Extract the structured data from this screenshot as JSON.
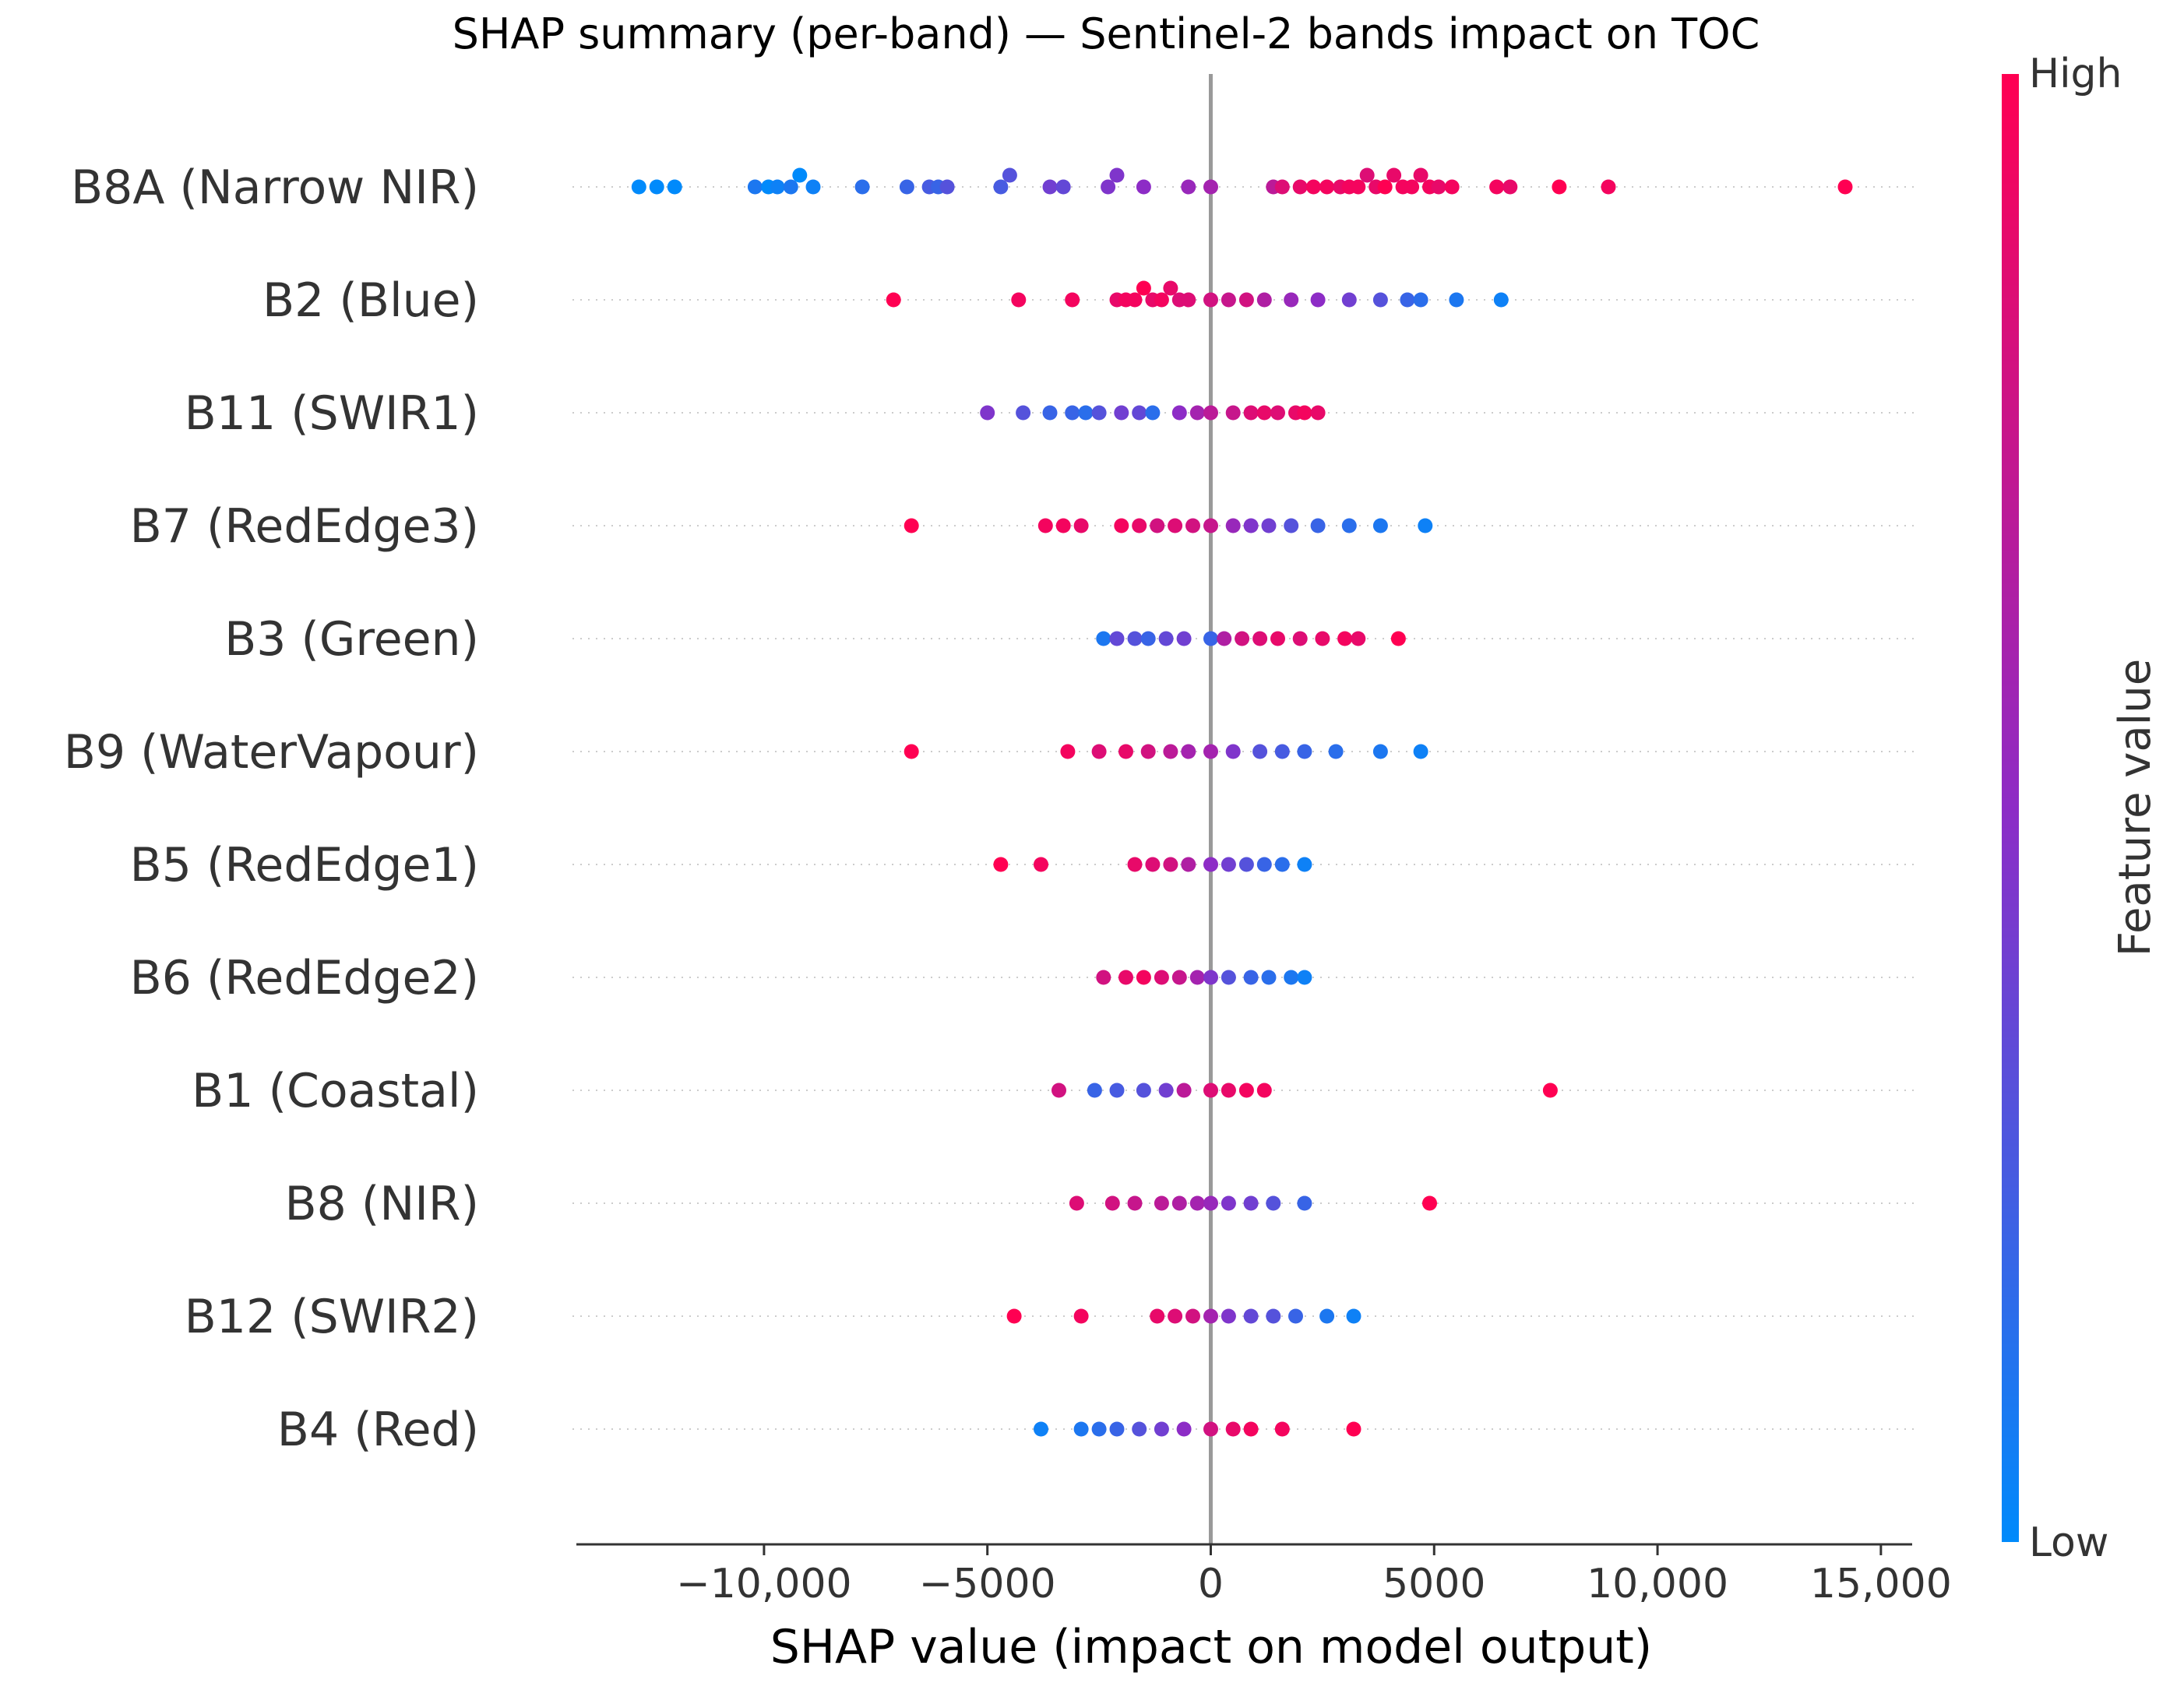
{
  "chart_data": {
    "type": "scatter",
    "variant": "shap-beeswarm",
    "title": "SHAP summary (per-band) — Sentinel-2 bands impact on TOC",
    "xlabel": "SHAP value (impact on model output)",
    "xlim": [
      -14200,
      15700
    ],
    "xticks": [
      -10000,
      -5000,
      0,
      5000,
      10000,
      15000
    ],
    "xtick_labels": [
      "−10,000",
      "−5000",
      "0",
      "5000",
      "10,000",
      "15,000"
    ],
    "grid": false,
    "zero_line": true,
    "colorbar": {
      "label": "Feature value",
      "high_label": "High",
      "low_label": "Low",
      "low_color": "#008afb",
      "mid_color": "#8d2cc6",
      "high_color": "#ff0052",
      "placement": "right"
    },
    "features": [
      {
        "name": "B8A (Narrow NIR)",
        "points": [
          [
            -12800,
            0.0
          ],
          [
            -12400,
            0.0
          ],
          [
            -12000,
            0.0
          ],
          [
            -10200,
            0.1
          ],
          [
            -9900,
            0.0
          ],
          [
            -9700,
            0.05
          ],
          [
            -9400,
            0.1
          ],
          [
            -9200,
            0.0
          ],
          [
            -8900,
            0.05
          ],
          [
            -7800,
            0.15
          ],
          [
            -6800,
            0.2
          ],
          [
            -6300,
            0.25
          ],
          [
            -6100,
            0.2
          ],
          [
            -5900,
            0.3
          ],
          [
            -4700,
            0.25
          ],
          [
            -4500,
            0.3
          ],
          [
            -3600,
            0.4
          ],
          [
            -3300,
            0.35
          ],
          [
            -2300,
            0.45
          ],
          [
            -2100,
            0.45
          ],
          [
            -1500,
            0.5
          ],
          [
            -500,
            0.55
          ],
          [
            0,
            0.6
          ],
          [
            1400,
            0.7
          ],
          [
            1600,
            0.85
          ],
          [
            2000,
            0.9
          ],
          [
            2300,
            0.95
          ],
          [
            2600,
            0.95
          ],
          [
            2900,
            0.9
          ],
          [
            3100,
            0.95
          ],
          [
            3300,
            0.95
          ],
          [
            3500,
            0.85
          ],
          [
            3700,
            0.9
          ],
          [
            3900,
            1.0
          ],
          [
            4100,
            0.9
          ],
          [
            4300,
            0.95
          ],
          [
            4500,
            0.95
          ],
          [
            4700,
            0.9
          ],
          [
            4900,
            0.95
          ],
          [
            5100,
            0.9
          ],
          [
            5400,
            0.95
          ],
          [
            6400,
            0.95
          ],
          [
            6700,
            0.9
          ],
          [
            7800,
            1.0
          ],
          [
            8900,
            0.95
          ],
          [
            14200,
            1.0
          ]
        ]
      },
      {
        "name": "B2 (Blue)",
        "points": [
          [
            -7100,
            1.0
          ],
          [
            -4300,
            0.95
          ],
          [
            -3100,
            0.95
          ],
          [
            -2100,
            0.9
          ],
          [
            -1900,
            0.95
          ],
          [
            -1700,
            0.95
          ],
          [
            -1500,
            1.0
          ],
          [
            -1300,
            0.9
          ],
          [
            -1100,
            0.95
          ],
          [
            -900,
            0.9
          ],
          [
            -700,
            0.85
          ],
          [
            -500,
            0.85
          ],
          [
            0,
            0.8
          ],
          [
            400,
            0.75
          ],
          [
            800,
            0.8
          ],
          [
            1200,
            0.65
          ],
          [
            1800,
            0.55
          ],
          [
            2400,
            0.5
          ],
          [
            3100,
            0.4
          ],
          [
            3800,
            0.3
          ],
          [
            4400,
            0.2
          ],
          [
            4700,
            0.15
          ],
          [
            5500,
            0.1
          ],
          [
            6500,
            0.05
          ]
        ]
      },
      {
        "name": "B11 (SWIR1)",
        "points": [
          [
            -5000,
            0.45
          ],
          [
            -4200,
            0.3
          ],
          [
            -3600,
            0.2
          ],
          [
            -3100,
            0.2
          ],
          [
            -2800,
            0.15
          ],
          [
            -2500,
            0.3
          ],
          [
            -2000,
            0.4
          ],
          [
            -1600,
            0.35
          ],
          [
            -1300,
            0.15
          ],
          [
            -700,
            0.5
          ],
          [
            -300,
            0.6
          ],
          [
            0,
            0.7
          ],
          [
            500,
            0.75
          ],
          [
            900,
            0.85
          ],
          [
            1200,
            0.9
          ],
          [
            1500,
            0.85
          ],
          [
            1900,
            0.9
          ],
          [
            2100,
            0.95
          ],
          [
            2400,
            0.9
          ]
        ]
      },
      {
        "name": "B7 (RedEdge3)",
        "points": [
          [
            -6700,
            1.0
          ],
          [
            -3700,
            0.95
          ],
          [
            -3300,
            0.95
          ],
          [
            -2900,
            0.9
          ],
          [
            -2000,
            0.95
          ],
          [
            -1600,
            0.9
          ],
          [
            -1200,
            0.8
          ],
          [
            -800,
            0.85
          ],
          [
            -400,
            0.8
          ],
          [
            0,
            0.75
          ],
          [
            500,
            0.55
          ],
          [
            900,
            0.45
          ],
          [
            1300,
            0.4
          ],
          [
            1800,
            0.3
          ],
          [
            2400,
            0.2
          ],
          [
            3100,
            0.15
          ],
          [
            3800,
            0.1
          ],
          [
            4800,
            0.05
          ]
        ]
      },
      {
        "name": "B3 (Green)",
        "points": [
          [
            -2400,
            0.1
          ],
          [
            -2100,
            0.35
          ],
          [
            -1700,
            0.3
          ],
          [
            -1400,
            0.2
          ],
          [
            -1000,
            0.35
          ],
          [
            -600,
            0.4
          ],
          [
            0,
            0.2
          ],
          [
            300,
            0.65
          ],
          [
            700,
            0.8
          ],
          [
            1100,
            0.85
          ],
          [
            1500,
            0.9
          ],
          [
            2000,
            0.85
          ],
          [
            2500,
            0.9
          ],
          [
            3000,
            0.95
          ],
          [
            3300,
            0.9
          ],
          [
            4200,
            1.0
          ]
        ]
      },
      {
        "name": "B9 (WaterVapour)",
        "points": [
          [
            -6700,
            1.0
          ],
          [
            -3200,
            0.95
          ],
          [
            -2500,
            0.85
          ],
          [
            -1900,
            0.9
          ],
          [
            -1400,
            0.8
          ],
          [
            -900,
            0.7
          ],
          [
            -500,
            0.6
          ],
          [
            0,
            0.6
          ],
          [
            500,
            0.45
          ],
          [
            1100,
            0.3
          ],
          [
            1600,
            0.25
          ],
          [
            2100,
            0.2
          ],
          [
            2800,
            0.15
          ],
          [
            3800,
            0.1
          ],
          [
            4700,
            0.05
          ]
        ]
      },
      {
        "name": "B5 (RedEdge1)",
        "points": [
          [
            -4700,
            1.0
          ],
          [
            -3800,
            0.95
          ],
          [
            -1700,
            0.9
          ],
          [
            -1300,
            0.85
          ],
          [
            -900,
            0.8
          ],
          [
            -500,
            0.65
          ],
          [
            0,
            0.5
          ],
          [
            400,
            0.4
          ],
          [
            800,
            0.3
          ],
          [
            1200,
            0.2
          ],
          [
            1600,
            0.15
          ],
          [
            2100,
            0.05
          ]
        ]
      },
      {
        "name": "B6 (RedEdge2)",
        "points": [
          [
            -2400,
            0.8
          ],
          [
            -1900,
            0.9
          ],
          [
            -1500,
            0.95
          ],
          [
            -1100,
            0.85
          ],
          [
            -700,
            0.75
          ],
          [
            -300,
            0.6
          ],
          [
            0,
            0.45
          ],
          [
            400,
            0.3
          ],
          [
            900,
            0.2
          ],
          [
            1300,
            0.15
          ],
          [
            1800,
            0.1
          ],
          [
            2100,
            0.05
          ]
        ]
      },
      {
        "name": "B1 (Coastal)",
        "points": [
          [
            -3400,
            0.8
          ],
          [
            -2600,
            0.2
          ],
          [
            -2100,
            0.25
          ],
          [
            -1500,
            0.3
          ],
          [
            -1000,
            0.4
          ],
          [
            -600,
            0.7
          ],
          [
            0,
            0.85
          ],
          [
            400,
            0.9
          ],
          [
            800,
            0.95
          ],
          [
            1200,
            0.95
          ],
          [
            7600,
            1.0
          ]
        ]
      },
      {
        "name": "B8 (NIR)",
        "points": [
          [
            -3000,
            0.85
          ],
          [
            -2200,
            0.8
          ],
          [
            -1700,
            0.75
          ],
          [
            -1100,
            0.7
          ],
          [
            -700,
            0.65
          ],
          [
            -300,
            0.6
          ],
          [
            0,
            0.55
          ],
          [
            400,
            0.45
          ],
          [
            900,
            0.4
          ],
          [
            1400,
            0.3
          ],
          [
            2100,
            0.2
          ],
          [
            4900,
            1.0
          ]
        ]
      },
      {
        "name": "B12 (SWIR2)",
        "points": [
          [
            -4400,
            1.0
          ],
          [
            -2900,
            0.95
          ],
          [
            -1200,
            0.9
          ],
          [
            -800,
            0.85
          ],
          [
            -400,
            0.8
          ],
          [
            0,
            0.6
          ],
          [
            400,
            0.45
          ],
          [
            900,
            0.35
          ],
          [
            1400,
            0.3
          ],
          [
            1900,
            0.2
          ],
          [
            2600,
            0.1
          ],
          [
            3200,
            0.05
          ]
        ]
      },
      {
        "name": "B4 (Red)",
        "points": [
          [
            -3800,
            0.05
          ],
          [
            -2900,
            0.1
          ],
          [
            -2500,
            0.15
          ],
          [
            -2100,
            0.2
          ],
          [
            -1600,
            0.3
          ],
          [
            -1100,
            0.4
          ],
          [
            -600,
            0.5
          ],
          [
            0,
            0.8
          ],
          [
            500,
            0.9
          ],
          [
            900,
            0.95
          ],
          [
            1600,
            0.95
          ],
          [
            3200,
            1.0
          ]
        ]
      }
    ]
  }
}
